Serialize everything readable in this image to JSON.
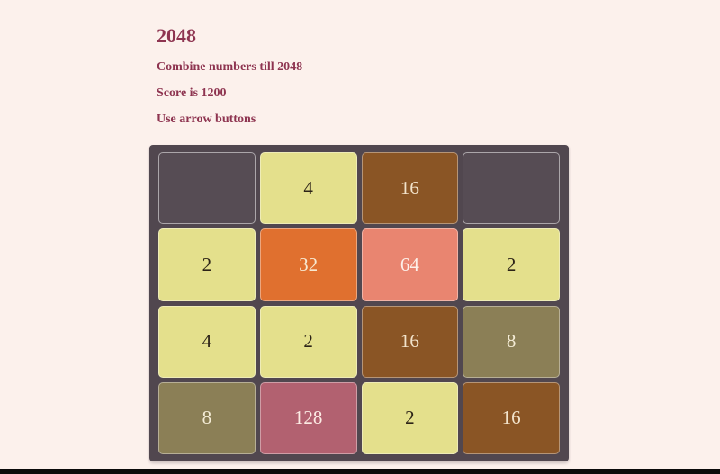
{
  "page": {
    "background": "#fcf1ec",
    "bottom_bar_color": "#0a0a0a"
  },
  "header": {
    "text_color": "#8e3450",
    "title": "2048",
    "lines": {
      "instructions": "Combine numbers till 2048",
      "score": "Score is 1200",
      "controls": "Use arrow buttons"
    }
  },
  "board": {
    "frame_color": "#51474f",
    "empty_cell_color": "#564c54",
    "grid": [
      [
        "",
        "4",
        "16",
        ""
      ],
      [
        "2",
        "32",
        "64",
        "2"
      ],
      [
        "4",
        "2",
        "16",
        "8"
      ],
      [
        "8",
        "128",
        "2",
        "16"
      ]
    ]
  },
  "tile_styles": {
    "2": {
      "bg": "#e4e08c",
      "fg": "#2c2317"
    },
    "4": {
      "bg": "#e4e08c",
      "fg": "#2c2317"
    },
    "8": {
      "bg": "#8b7f56",
      "fg": "#f4ecd6"
    },
    "16": {
      "bg": "#8a5525",
      "fg": "#f2e3cb"
    },
    "32": {
      "bg": "#e0702f",
      "fg": "#f7e9d1"
    },
    "64": {
      "bg": "#e98570",
      "fg": "#fdf0e9"
    },
    "128": {
      "bg": "#b26170",
      "fg": "#fcebe4"
    }
  }
}
